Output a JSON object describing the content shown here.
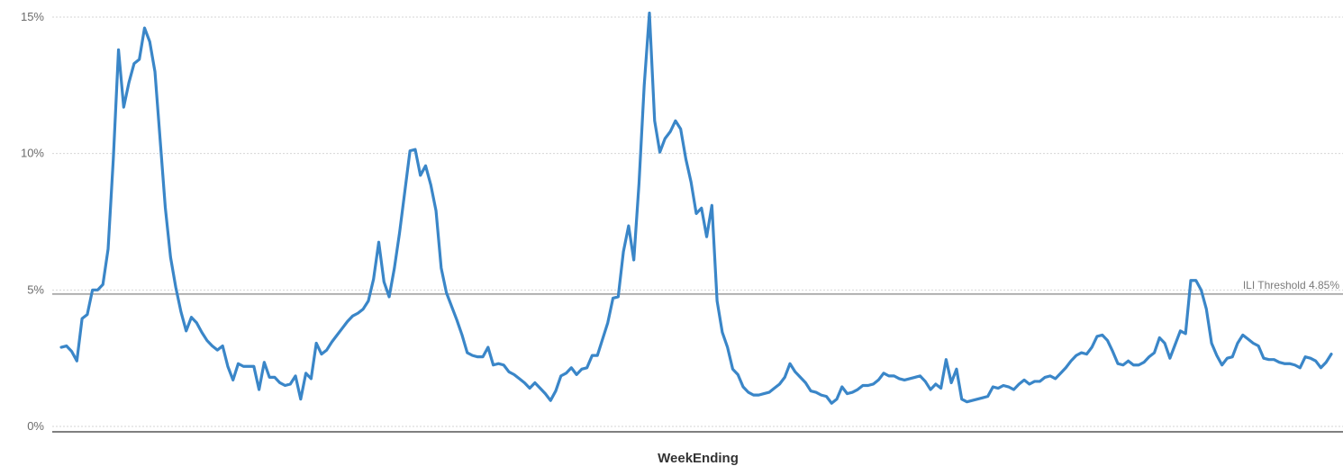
{
  "chart_data": {
    "type": "line",
    "title": "",
    "xlabel": "WeekEnding",
    "ylabel": "",
    "ylim": [
      0,
      15
    ],
    "y_ticks": [
      {
        "value": 0,
        "label": "0%"
      },
      {
        "value": 5,
        "label": "5%"
      },
      {
        "value": 10,
        "label": "10%"
      },
      {
        "value": 15,
        "label": "15%"
      }
    ],
    "grid": true,
    "threshold": {
      "value": 4.85,
      "label": "ILI Threshold 4.85%"
    },
    "series": [
      {
        "color": "#3a86c8",
        "values": [
          2.9,
          2.95,
          2.75,
          2.4,
          3.95,
          4.1,
          5.0,
          5.0,
          5.2,
          6.5,
          9.8,
          13.8,
          11.7,
          12.6,
          13.3,
          13.45,
          14.6,
          14.1,
          13.0,
          10.5,
          8.0,
          6.2,
          5.1,
          4.2,
          3.5,
          4.0,
          3.8,
          3.45,
          3.15,
          2.95,
          2.8,
          2.95,
          2.2,
          1.7,
          2.3,
          2.2,
          2.2,
          2.2,
          1.35,
          2.35,
          1.8,
          1.8,
          1.6,
          1.5,
          1.55,
          1.85,
          1.0,
          1.95,
          1.75,
          3.05,
          2.65,
          2.8,
          3.1,
          3.35,
          3.6,
          3.85,
          4.05,
          4.15,
          4.3,
          4.6,
          5.4,
          6.75,
          5.3,
          4.75,
          5.8,
          7.1,
          8.6,
          10.1,
          10.15,
          9.2,
          9.55,
          8.85,
          7.9,
          5.8,
          4.9,
          4.4,
          3.9,
          3.35,
          2.7,
          2.6,
          2.55,
          2.55,
          2.9,
          2.25,
          2.3,
          2.25,
          2.0,
          1.9,
          1.75,
          1.6,
          1.4,
          1.6,
          1.4,
          1.2,
          0.95,
          1.3,
          1.85,
          1.95,
          2.15,
          1.9,
          2.1,
          2.15,
          2.6,
          2.6,
          3.2,
          3.8,
          4.7,
          4.75,
          6.4,
          7.35,
          6.1,
          8.9,
          12.5,
          15.15,
          11.2,
          10.05,
          10.55,
          10.8,
          11.2,
          10.9,
          9.8,
          8.95,
          7.8,
          8.0,
          6.95,
          8.1,
          4.6,
          3.45,
          2.9,
          2.1,
          1.9,
          1.45,
          1.25,
          1.15,
          1.15,
          1.2,
          1.25,
          1.4,
          1.55,
          1.8,
          2.3,
          2.0,
          1.8,
          1.6,
          1.3,
          1.25,
          1.15,
          1.1,
          0.85,
          1.0,
          1.45,
          1.2,
          1.25,
          1.35,
          1.5,
          1.5,
          1.55,
          1.7,
          1.95,
          1.85,
          1.85,
          1.75,
          1.7,
          1.75,
          1.8,
          1.85,
          1.65,
          1.35,
          1.55,
          1.4,
          2.45,
          1.6,
          2.1,
          1.0,
          0.9,
          0.95,
          1.0,
          1.05,
          1.1,
          1.45,
          1.4,
          1.5,
          1.45,
          1.35,
          1.55,
          1.7,
          1.55,
          1.65,
          1.65,
          1.8,
          1.85,
          1.75,
          1.95,
          2.15,
          2.4,
          2.6,
          2.7,
          2.65,
          2.9,
          3.3,
          3.35,
          3.15,
          2.75,
          2.3,
          2.25,
          2.4,
          2.25,
          2.25,
          2.35,
          2.55,
          2.7,
          3.25,
          3.05,
          2.5,
          3.0,
          3.5,
          3.4,
          5.35,
          5.35,
          5.0,
          4.3,
          3.05,
          2.6,
          2.25,
          2.5,
          2.55,
          3.05,
          3.35,
          3.2,
          3.05,
          2.95,
          2.5,
          2.45,
          2.45,
          2.35,
          2.3,
          2.3,
          2.25,
          2.15,
          2.55,
          2.5,
          2.4,
          2.15,
          2.35,
          2.65
        ]
      }
    ]
  }
}
